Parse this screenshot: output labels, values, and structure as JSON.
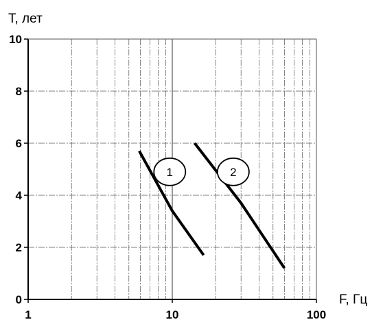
{
  "chart_data": {
    "type": "line",
    "title": "",
    "xlabel": "F, Гц",
    "ylabel": "T, лет",
    "xscale": "log",
    "xlim": [
      1,
      100
    ],
    "ylim": [
      0,
      10
    ],
    "xticks": [
      1,
      10,
      100
    ],
    "xtick_labels": [
      "1",
      "10",
      "100"
    ],
    "yticks": [
      0,
      2,
      4,
      6,
      8,
      10
    ],
    "ytick_labels": [
      "0",
      "2",
      "4",
      "6",
      "8",
      "10"
    ],
    "grid": true,
    "legend": "none",
    "series": [
      {
        "label": "1",
        "x": [
          5.9,
          10,
          16.5
        ],
        "y": [
          5.7,
          3.4,
          1.7
        ]
      },
      {
        "label": "2",
        "x": [
          14.3,
          30,
          60
        ],
        "y": [
          6.0,
          3.7,
          1.2
        ]
      }
    ],
    "line_color": "#000000"
  }
}
